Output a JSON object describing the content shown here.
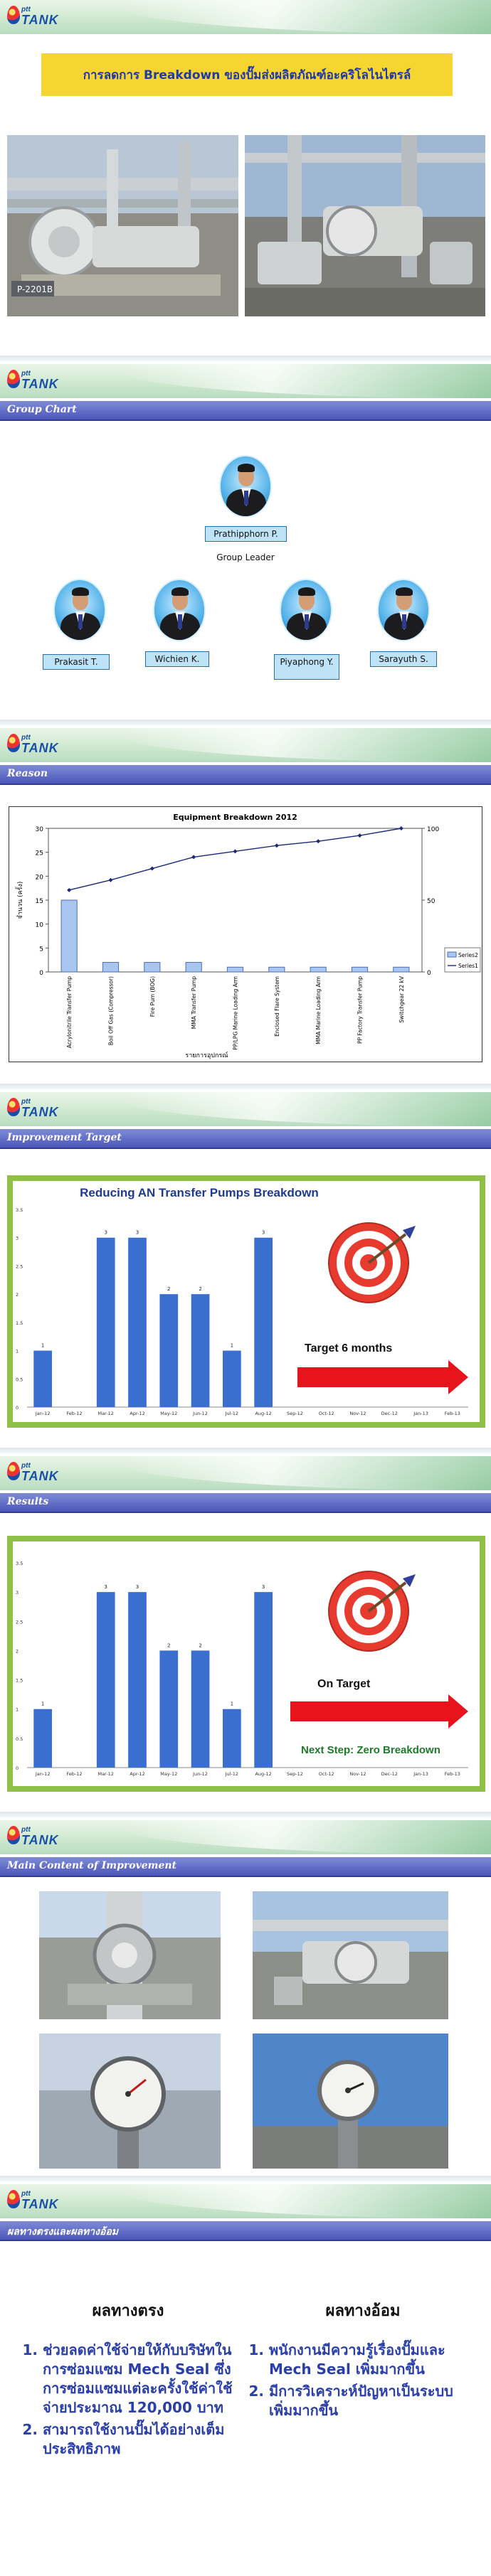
{
  "slide1": {
    "title": "การลดการ Breakdown ของปั๊มส่งผลิตภัณฑ์อะคริโลไนไตรล์",
    "photo_label": "P-2201B"
  },
  "org": {
    "logo": {
      "ptt": "ptt",
      "tank": "TANK"
    },
    "section_title": "Group Chart",
    "leader": {
      "name": "Prathipphorn P.",
      "role": "Group Leader"
    },
    "members": [
      {
        "name": "Prakasit  T."
      },
      {
        "name": "Wichien  K."
      },
      {
        "name": "Piyaphong Y."
      },
      {
        "name": "Sarayuth  S."
      }
    ]
  },
  "reason": {
    "section_title": "Reason",
    "chart_data": {
      "type": "bar",
      "title": "Equipment Breakdown 2012",
      "categories": [
        "Acrylonitrile Transfer Pump",
        "Boil Off Gas (Compressor)",
        "Fire Pum (BOG)",
        "MMA Transfer Pump",
        "PP/LPG Marine Loading Arm",
        "Enclosed Flare System",
        "MMA Marine Loading Arm",
        "PP Factory Transfer Pump",
        "Switchgear 22 kV"
      ],
      "series": [
        {
          "name": "Series2",
          "values": [
            15,
            2,
            2,
            2,
            1,
            1,
            1,
            1,
            1
          ]
        },
        {
          "name": "Series1",
          "values": [
            57,
            64,
            72,
            80,
            84,
            88,
            91,
            95,
            100
          ]
        }
      ],
      "ylabel": "จำนวน (ครั้ง)",
      "xlabel": "รายการอุปกรณ์",
      "ylim": [
        0,
        30
      ],
      "y2lim": [
        0,
        100
      ],
      "yticks": [
        "0",
        "5",
        "10",
        "15",
        "20",
        "25",
        "30"
      ],
      "y2ticks": [
        "0",
        "50",
        "100"
      ],
      "legend": [
        "Series2",
        "Series1"
      ]
    }
  },
  "improvement": {
    "section_title": "Improvement Target",
    "chart_data": {
      "type": "bar",
      "title": "Reducing AN Transfer Pumps Breakdown",
      "categories": [
        "Jan-12",
        "Feb-12",
        "Mar-12",
        "Apr-12",
        "May-12",
        "Jun-12",
        "Jul-12",
        "Aug-12",
        "Sep-12",
        "Oct-12",
        "Nov-12",
        "Dec-12",
        "Jan-13",
        "Feb-13"
      ],
      "values": [
        1,
        0,
        3,
        3,
        2,
        2,
        1,
        3,
        null,
        null,
        null,
        null,
        null,
        null
      ],
      "data_labels": [
        "1",
        "",
        "3",
        "3",
        "2",
        "2",
        "1",
        "3",
        "",
        "",
        "",
        "",
        "",
        ""
      ],
      "yticks": [
        "0",
        "0.5",
        "1",
        "1.5",
        "2",
        "2.5",
        "3",
        "3.5"
      ],
      "ylim": [
        0,
        3.5
      ]
    },
    "target_text": "Target  6  months"
  },
  "results": {
    "section_title": "Results",
    "chart_data": {
      "type": "bar",
      "categories": [
        "Jan-12",
        "Feb-12",
        "Mar-12",
        "Apr-12",
        "May-12",
        "Jun-12",
        "Jul-12",
        "Aug-12",
        "Sep-12",
        "Oct-12",
        "Nov-12",
        "Dec-12",
        "Jan-13",
        "Feb-13"
      ],
      "values": [
        1,
        0,
        3,
        3,
        2,
        2,
        1,
        3,
        0,
        0,
        0,
        0,
        0,
        0
      ],
      "data_labels": [
        "1",
        "",
        "3",
        "3",
        "2",
        "2",
        "1",
        "3",
        "",
        "",
        "",
        "",
        "",
        ""
      ],
      "yticks": [
        "0",
        "0.5",
        "1",
        "1.5",
        "2",
        "2.5",
        "3",
        "3.5"
      ],
      "ylim": [
        0,
        3.5
      ]
    },
    "on_target": "On Target",
    "next_step": "Next Step: Zero Breakdown"
  },
  "content": {
    "section_title": "Main Content of Improvement"
  },
  "benefits": {
    "section_title": "ผลทางตรงและผลทางอ้อม",
    "direct_title": "ผลทางตรง",
    "indirect_title": "ผลทางอ้อม",
    "direct": [
      "ช่วยลดค่าใช้จ่ายให้กับบริษัทในการซ่อมแซม Mech Seal ซึ่งการซ่อมแซมแต่ละครั้งใช้ค่าใช้จ่ายประมาณ 120,000 บาท",
      "สามารถใช้งานปั๊มได้อย่างเต็มประสิทธิภาพ"
    ],
    "indirect": [
      "พนักงานมีความรู้เรื่องปั๊มและ Mech Seal เพิ่มมากขึ้น",
      "มีการวิเคราะห์ปัญหาเป็นระบบเพิ่มมากขึ้น"
    ]
  },
  "colors": {
    "accent_blue": "#2b3fa8",
    "title_yellow": "#f6d531",
    "section_bar": "#4b57b8",
    "bar_blue": "#3b6fcf",
    "frame_green": "#8fbf47",
    "arrow_red": "#e8141b"
  }
}
